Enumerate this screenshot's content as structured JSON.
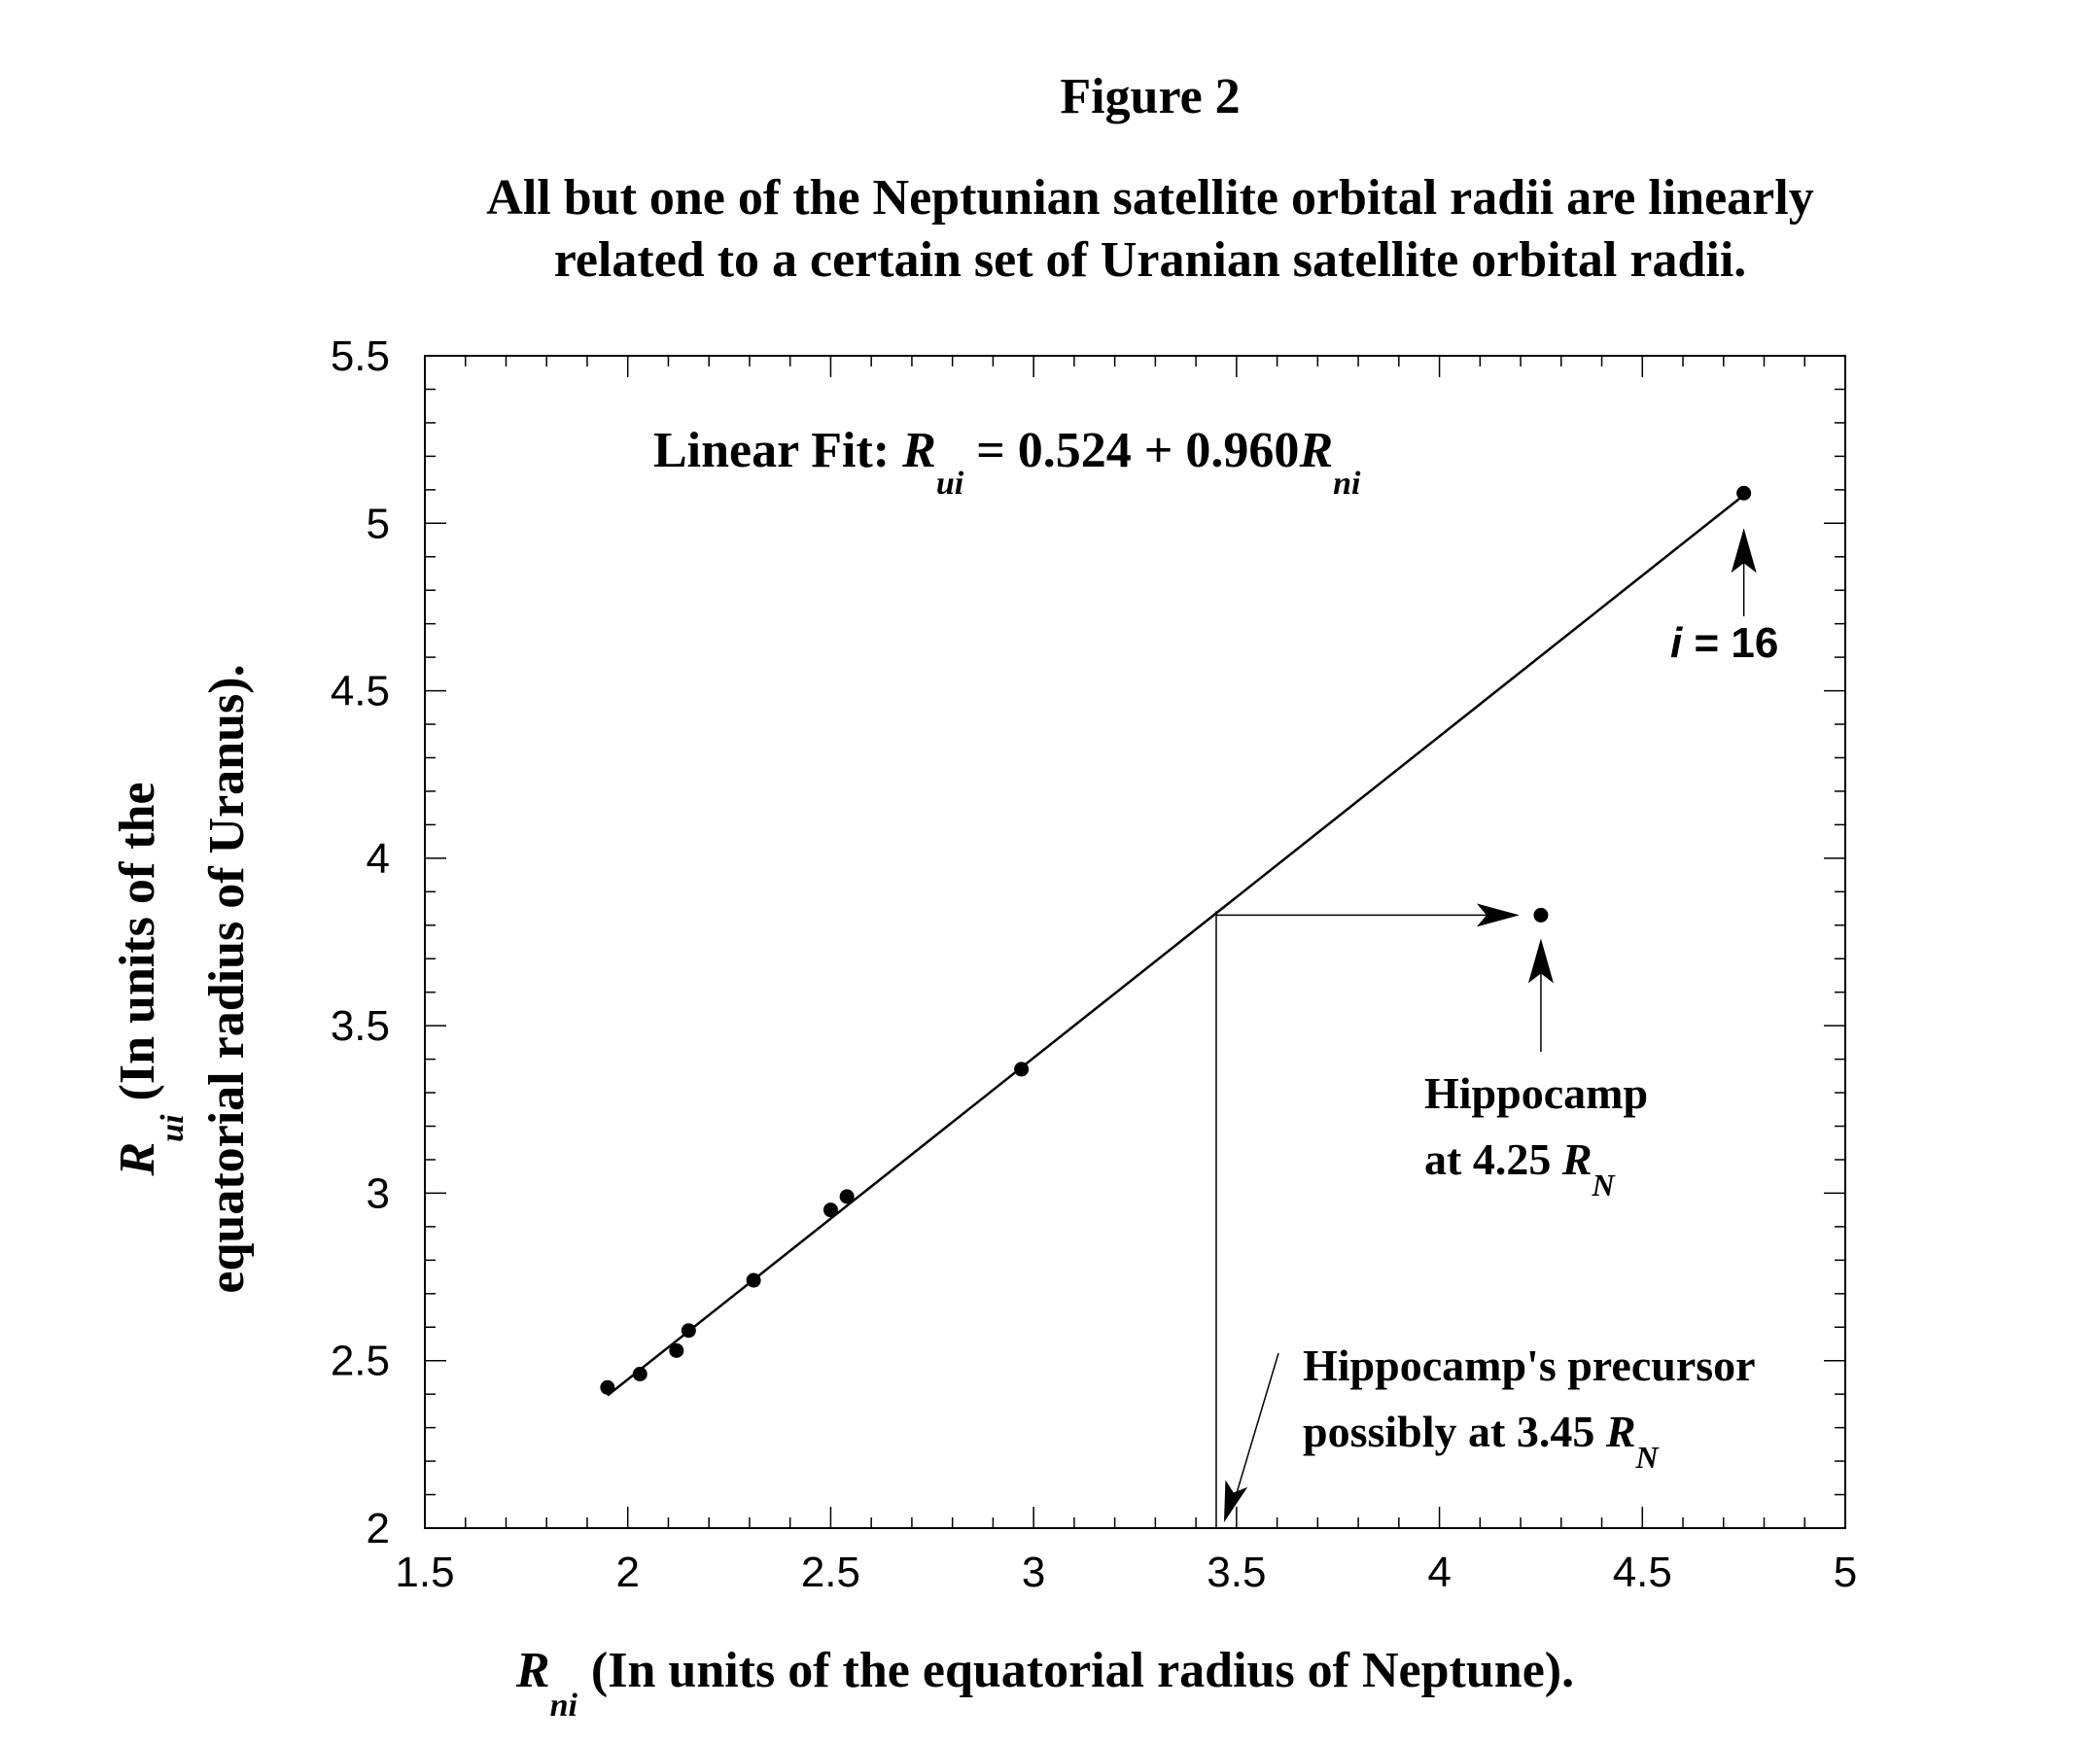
{
  "figure": {
    "title": "Figure 2",
    "subtitle_line1": "All but one of the Neptunian satellite orbital radii are linearly",
    "subtitle_line2": "related to a certain set of Uranian satellite orbital radii."
  },
  "chart_data": {
    "type": "scatter",
    "xlim": [
      1.5,
      5
    ],
    "ylim": [
      2,
      5.5
    ],
    "x_ticks": [
      "1.5",
      "2",
      "2.5",
      "3",
      "3.5",
      "4",
      "4.5",
      "5"
    ],
    "y_ticks": [
      "2",
      "2.5",
      "3",
      "3.5",
      "4",
      "4.5",
      "5",
      "5.5"
    ],
    "xlabel": {
      "symbol": "R",
      "subscript": "ni",
      "text": "(In units of the equatorial radius of Neptune)."
    },
    "ylabel": {
      "symbol": "R",
      "subscript": "ui",
      "line1": "(In units of the",
      "line2": "equatorial radius of Uranus)."
    },
    "points": [
      {
        "x": 1.95,
        "y": 2.42
      },
      {
        "x": 2.03,
        "y": 2.46
      },
      {
        "x": 2.12,
        "y": 2.53
      },
      {
        "x": 2.15,
        "y": 2.59
      },
      {
        "x": 2.31,
        "y": 2.74
      },
      {
        "x": 2.5,
        "y": 2.95
      },
      {
        "x": 2.54,
        "y": 2.99
      },
      {
        "x": 2.97,
        "y": 3.37
      },
      {
        "x": 4.75,
        "y": 5.09
      }
    ],
    "outlier": {
      "x": 4.25,
      "y": 3.83
    },
    "fit": {
      "intercept": 0.524,
      "slope": 0.96,
      "x_range": [
        1.95,
        4.75
      ],
      "label_prefix": "Linear Fit: ",
      "label_r": "R",
      "label_sub_ui": "ui",
      "label_mid": " = 0.524 + 0.960",
      "label_sub_ni": "ni"
    },
    "precursor": {
      "x": 3.45
    },
    "annotations": {
      "i16_var": "i",
      "i16_rest": " = 16",
      "hippocamp_line1": "Hippocamp",
      "hippocamp_line2": "at 4.25 ",
      "hippocamp_r": "R",
      "hippocamp_sub": "N",
      "precursor_line1": "Hippocamp's precursor",
      "precursor_line2": "possibly at 3.45 ",
      "precursor_r": "R",
      "precursor_sub": "N"
    }
  }
}
